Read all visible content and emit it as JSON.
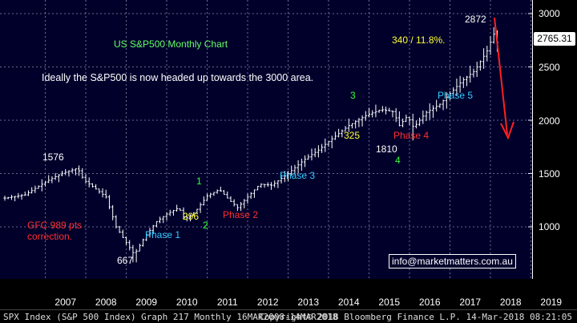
{
  "header": {
    "title": "US S&P500 Monthly Chart"
  },
  "subtitle": "Ideally the S&P500 is now headed up towards the 3000 area.",
  "last_price": "2765.31",
  "annotations": {
    "gfc": "GFC 989 pts correction.",
    "low_667": "667",
    "high_1576": "1576",
    "high_2872": "2872",
    "pts_325": "325",
    "pts_296": "296",
    "low_1810": "1810",
    "gain": "340 / 11.8%.",
    "wave_1": "1",
    "wave_2": "2",
    "wave_3": "3",
    "wave_4": "4",
    "phase_1": "Phase 1",
    "phase_2": "Phase 2",
    "phase_3": "Phase 3",
    "phase_4": "Phase 4",
    "phase_5": "Phase 5"
  },
  "email": "info@marketmatters.com.au",
  "footer": {
    "left": "SPX Index (S&P 500 Index) Graph 217  Monthly 16MAR2008-14MAR2018",
    "right": "Copyright© 2018 Bloomberg Finance L.P.  14-Mar-2018 08:21:05"
  },
  "colors": {
    "background": "#00002b",
    "bars": "#ffffff",
    "arrow": "#ff2020",
    "phase": "#33ccff",
    "red_text": "#ff3030",
    "green_text": "#33ff33",
    "yellow_text": "#ffff33",
    "title_text": "#66ff66"
  },
  "chart_data": {
    "type": "bar",
    "title": "US S&P500 Monthly Chart",
    "xlabel": "",
    "ylabel": "",
    "ylim": [
      600,
      3050
    ],
    "y_ticks": [
      1000,
      1500,
      2000,
      2500,
      3000
    ],
    "x_ticks": [
      "2007",
      "2008",
      "2009",
      "2010",
      "2011",
      "2012",
      "2013",
      "2014",
      "2015",
      "2016",
      "2017",
      "2018",
      "2019"
    ],
    "grid": true,
    "x_start_year": 2006.0,
    "anchors": [
      [
        2006.0,
        1270
      ],
      [
        2006.5,
        1300
      ],
      [
        2007.0,
        1420
      ],
      [
        2007.4,
        1500
      ],
      [
        2007.8,
        1550
      ],
      [
        2007.95,
        1440
      ],
      [
        2008.2,
        1370
      ],
      [
        2008.5,
        1280
      ],
      [
        2008.75,
        1000
      ],
      [
        2008.95,
        880
      ],
      [
        2009.2,
        740
      ],
      [
        2009.45,
        900
      ],
      [
        2009.75,
        1050
      ],
      [
        2010.0,
        1120
      ],
      [
        2010.3,
        1180
      ],
      [
        2010.45,
        1070
      ],
      [
        2010.7,
        1140
      ],
      [
        2011.0,
        1290
      ],
      [
        2011.3,
        1350
      ],
      [
        2011.55,
        1250
      ],
      [
        2011.75,
        1180
      ],
      [
        2011.95,
        1260
      ],
      [
        2012.3,
        1400
      ],
      [
        2012.6,
        1390
      ],
      [
        2013.0,
        1500
      ],
      [
        2013.4,
        1630
      ],
      [
        2013.75,
        1720
      ],
      [
        2014.0,
        1800
      ],
      [
        2014.5,
        1950
      ],
      [
        2014.95,
        2050
      ],
      [
        2015.3,
        2100
      ],
      [
        2015.6,
        2080
      ],
      [
        2015.75,
        1950
      ],
      [
        2015.95,
        2040
      ],
      [
        2016.1,
        1930
      ],
      [
        2016.4,
        2070
      ],
      [
        2016.75,
        2150
      ],
      [
        2016.95,
        2230
      ],
      [
        2017.3,
        2370
      ],
      [
        2017.6,
        2460
      ],
      [
        2017.95,
        2670
      ],
      [
        2018.07,
        2820
      ],
      [
        2018.2,
        2700
      ]
    ],
    "last_price": 2765.31
  }
}
